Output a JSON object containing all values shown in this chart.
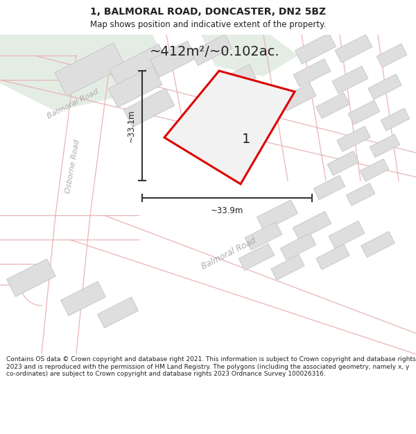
{
  "title_line1": "1, BALMORAL ROAD, DONCASTER, DN2 5BZ",
  "title_line2": "Map shows position and indicative extent of the property.",
  "area_text": "~412m²/~0.102ac.",
  "dim_vertical": "~33.1m",
  "dim_horizontal": "~33.9m",
  "label_number": "1",
  "footer_text": "Contains OS data © Crown copyright and database right 2021. This information is subject to Crown copyright and database rights 2023 and is reproduced with the permission of HM Land Registry. The polygons (including the associated geometry, namely x, y co-ordinates) are subject to Crown copyright and database rights 2023 Ordnance Survey 100026316.",
  "map_bg": "#f7f6f2",
  "road_fill": "#e8e8e8",
  "road_stroke": "#e8b4b4",
  "bldg_fill": "#dedede",
  "bldg_stroke": "#c8c8c8",
  "plot_fill": "#f2f2f2",
  "plot_stroke": "#dd0000",
  "green_fill": "#e4ede4",
  "footer_bg": "#ffffff",
  "title_bg": "#ffffff",
  "dim_color": "#333333",
  "road_label_color": "#aaaaaa",
  "text_color": "#222222"
}
